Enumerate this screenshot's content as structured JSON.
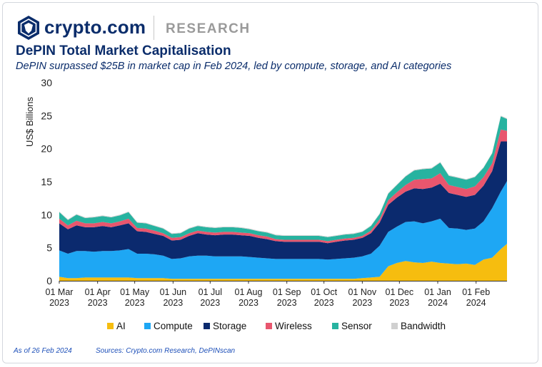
{
  "header": {
    "brand": "crypto.com",
    "section": "RESEARCH",
    "title": "DePIN Total Market Capitalisation",
    "subtitle": "DePIN surpassed $25B in market cap in Feb 2024, led by compute, storage, and AI categories"
  },
  "footer": {
    "as_of": "As of 26 Feb 2024",
    "sources": "Sources: Crypto.com Research, DePINscan"
  },
  "colors": {
    "brand": "#0b2d6b",
    "AI": "#f6bd0f",
    "Compute": "#1ea7f4",
    "Storage": "#0b2a6e",
    "Wireless": "#e8566e",
    "Sensor": "#27b3a0",
    "Bandwidth": "#d0d0d0"
  },
  "chart_data": {
    "type": "area",
    "stacked": true,
    "title": "",
    "ylabel": "US$ Billions",
    "ylim": [
      0,
      30
    ],
    "yticks": [
      "0",
      "5",
      "10",
      "15",
      "20",
      "25",
      "30"
    ],
    "xticks": [
      {
        "line1": "01 Mar",
        "line2": "2023",
        "date": "2023-03-01"
      },
      {
        "line1": "01 Apr",
        "line2": "2023",
        "date": "2023-04-01"
      },
      {
        "line1": "01 May",
        "line2": "2023",
        "date": "2023-05-01"
      },
      {
        "line1": "01 Jun",
        "line2": "2023",
        "date": "2023-06-01"
      },
      {
        "line1": "01 Jul",
        "line2": "2023",
        "date": "2023-07-01"
      },
      {
        "line1": "01 Aug",
        "line2": "2023",
        "date": "2023-08-01"
      },
      {
        "line1": "01 Sep",
        "line2": "2023",
        "date": "2023-09-01"
      },
      {
        "line1": "01 Oct",
        "line2": "2023",
        "date": "2023-10-01"
      },
      {
        "line1": "01 Nov",
        "line2": "2023",
        "date": "2023-11-01"
      },
      {
        "line1": "01 Dec",
        "line2": "2023",
        "date": "2023-12-01"
      },
      {
        "line1": "01 Jan",
        "line2": "2024",
        "date": "2024-01-01"
      },
      {
        "line1": "01 Feb",
        "line2": "2024",
        "date": "2024-02-01"
      }
    ],
    "grid": false,
    "legend_position": "bottom",
    "legend": [
      "AI",
      "Compute",
      "Storage",
      "Wireless",
      "Sensor",
      "Bandwidth"
    ],
    "x": [
      "2023-03-01",
      "2023-03-08",
      "2023-03-15",
      "2023-03-22",
      "2023-03-29",
      "2023-04-05",
      "2023-04-12",
      "2023-04-19",
      "2023-04-26",
      "2023-05-03",
      "2023-05-10",
      "2023-05-17",
      "2023-05-24",
      "2023-05-31",
      "2023-06-07",
      "2023-06-14",
      "2023-06-21",
      "2023-06-28",
      "2023-07-05",
      "2023-07-12",
      "2023-07-19",
      "2023-07-26",
      "2023-08-02",
      "2023-08-09",
      "2023-08-16",
      "2023-08-23",
      "2023-08-30",
      "2023-09-06",
      "2023-09-13",
      "2023-09-20",
      "2023-09-27",
      "2023-10-04",
      "2023-10-11",
      "2023-10-18",
      "2023-10-25",
      "2023-11-01",
      "2023-11-08",
      "2023-11-15",
      "2023-11-22",
      "2023-11-29",
      "2023-12-06",
      "2023-12-13",
      "2023-12-20",
      "2023-12-27",
      "2024-01-03",
      "2024-01-10",
      "2024-01-17",
      "2024-01-24",
      "2024-01-31",
      "2024-02-07",
      "2024-02-14",
      "2024-02-21",
      "2024-02-26"
    ],
    "series": [
      {
        "name": "AI",
        "values": [
          0.6,
          0.4,
          0.4,
          0.5,
          0.5,
          0.5,
          0.5,
          0.5,
          0.5,
          0.4,
          0.4,
          0.4,
          0.4,
          0.3,
          0.3,
          0.3,
          0.3,
          0.3,
          0.3,
          0.3,
          0.3,
          0.3,
          0.3,
          0.3,
          0.3,
          0.3,
          0.3,
          0.3,
          0.3,
          0.3,
          0.3,
          0.3,
          0.3,
          0.3,
          0.3,
          0.4,
          0.5,
          0.6,
          2.2,
          2.7,
          3.0,
          2.8,
          2.7,
          2.9,
          2.7,
          2.6,
          2.5,
          2.6,
          2.4,
          3.2,
          3.5,
          4.8,
          5.6
        ]
      },
      {
        "name": "Compute",
        "values": [
          4.0,
          3.7,
          4.1,
          4.0,
          3.9,
          4.0,
          4.0,
          4.1,
          4.3,
          3.7,
          3.7,
          3.6,
          3.4,
          3.0,
          3.1,
          3.4,
          3.5,
          3.5,
          3.4,
          3.4,
          3.4,
          3.4,
          3.3,
          3.2,
          3.1,
          3.0,
          3.0,
          3.0,
          3.0,
          3.0,
          3.0,
          2.9,
          3.0,
          3.1,
          3.2,
          3.3,
          3.6,
          4.7,
          5.2,
          5.5,
          5.9,
          6.2,
          6.0,
          6.1,
          6.7,
          5.4,
          5.4,
          5.1,
          5.5,
          5.8,
          7.5,
          8.7,
          9.5
        ]
      },
      {
        "name": "Storage",
        "values": [
          4.1,
          3.7,
          3.9,
          3.6,
          3.7,
          3.8,
          3.6,
          3.8,
          3.9,
          3.4,
          3.3,
          3.1,
          3.0,
          2.8,
          2.8,
          3.1,
          3.4,
          3.2,
          3.2,
          3.3,
          3.3,
          3.2,
          3.2,
          3.0,
          2.9,
          2.7,
          2.6,
          2.6,
          2.6,
          2.6,
          2.6,
          2.5,
          2.6,
          2.7,
          2.7,
          2.8,
          3.1,
          3.5,
          4.1,
          4.4,
          4.6,
          5.0,
          5.2,
          5.1,
          5.3,
          5.3,
          5.1,
          5.0,
          5.1,
          5.4,
          5.6,
          7.6,
          6.0
        ]
      },
      {
        "name": "Wireless",
        "values": [
          0.7,
          0.6,
          0.7,
          0.6,
          0.6,
          0.6,
          0.6,
          0.6,
          0.7,
          0.5,
          0.5,
          0.5,
          0.4,
          0.4,
          0.4,
          0.4,
          0.4,
          0.4,
          0.4,
          0.4,
          0.4,
          0.4,
          0.4,
          0.4,
          0.4,
          0.3,
          0.3,
          0.3,
          0.3,
          0.3,
          0.3,
          0.3,
          0.3,
          0.3,
          0.3,
          0.3,
          0.4,
          0.5,
          0.7,
          0.8,
          1.0,
          1.3,
          1.5,
          1.4,
          1.6,
          1.2,
          1.2,
          1.2,
          1.3,
          1.3,
          1.2,
          1.8,
          1.6
        ]
      },
      {
        "name": "Sensor",
        "values": [
          1.0,
          0.8,
          0.9,
          0.8,
          0.9,
          0.9,
          0.9,
          0.9,
          1.0,
          0.8,
          0.8,
          0.7,
          0.7,
          0.6,
          0.6,
          0.7,
          0.7,
          0.7,
          0.7,
          0.7,
          0.7,
          0.7,
          0.6,
          0.6,
          0.6,
          0.6,
          0.6,
          0.6,
          0.6,
          0.6,
          0.6,
          0.6,
          0.6,
          0.6,
          0.6,
          0.6,
          0.7,
          0.8,
          1.0,
          1.1,
          1.3,
          1.4,
          1.5,
          1.5,
          1.6,
          1.4,
          1.4,
          1.4,
          1.4,
          1.4,
          1.5,
          2.0,
          1.8
        ]
      },
      {
        "name": "Bandwidth",
        "values": [
          0.1,
          0.1,
          0.1,
          0.1,
          0.1,
          0.1,
          0.1,
          0.1,
          0.1,
          0.1,
          0.1,
          0.1,
          0.1,
          0.1,
          0.1,
          0.1,
          0.1,
          0.1,
          0.1,
          0.1,
          0.1,
          0.1,
          0.1,
          0.1,
          0.1,
          0.1,
          0.1,
          0.1,
          0.1,
          0.1,
          0.1,
          0.1,
          0.1,
          0.1,
          0.1,
          0.1,
          0.1,
          0.1,
          0.1,
          0.1,
          0.1,
          0.1,
          0.1,
          0.1,
          0.1,
          0.1,
          0.1,
          0.1,
          0.1,
          0.1,
          0.1,
          0.1,
          0.1
        ]
      }
    ]
  }
}
